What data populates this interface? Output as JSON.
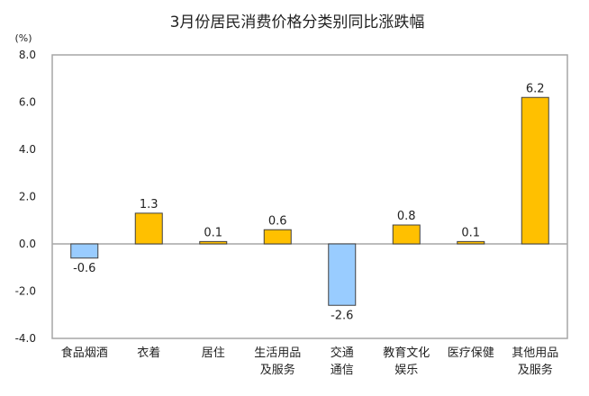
{
  "chart_data": {
    "type": "bar",
    "title": "3月份居民消费价格分类别同比涨跌幅",
    "ylabel": "(%)",
    "xlabel": "",
    "ylim": [
      -4.0,
      8.0
    ],
    "yticks": [
      "8.0",
      "6.0",
      "4.0",
      "2.0",
      "0.0",
      "-2.0",
      "-4.0"
    ],
    "ytick_values": [
      8,
      6,
      4,
      2,
      0,
      -2,
      -4
    ],
    "grid": false,
    "categories": [
      [
        "食品烟酒"
      ],
      [
        "衣着"
      ],
      [
        "居住"
      ],
      [
        "生活用品",
        "及服务"
      ],
      [
        "交通",
        "通信"
      ],
      [
        "教育文化",
        "娱乐"
      ],
      [
        "医疗保健"
      ],
      [
        "其他用品",
        "及服务"
      ]
    ],
    "values": [
      -0.6,
      1.3,
      0.1,
      0.6,
      -2.6,
      0.8,
      0.1,
      6.2
    ],
    "data_labels": [
      "-0.6",
      "1.3",
      "0.1",
      "0.6",
      "-2.6",
      "0.8",
      "0.1",
      "6.2"
    ],
    "colors": {
      "positive": "#FFC000",
      "negative": "#99CCFF",
      "outline": "#404040",
      "frame": "#A6A6A6"
    }
  }
}
